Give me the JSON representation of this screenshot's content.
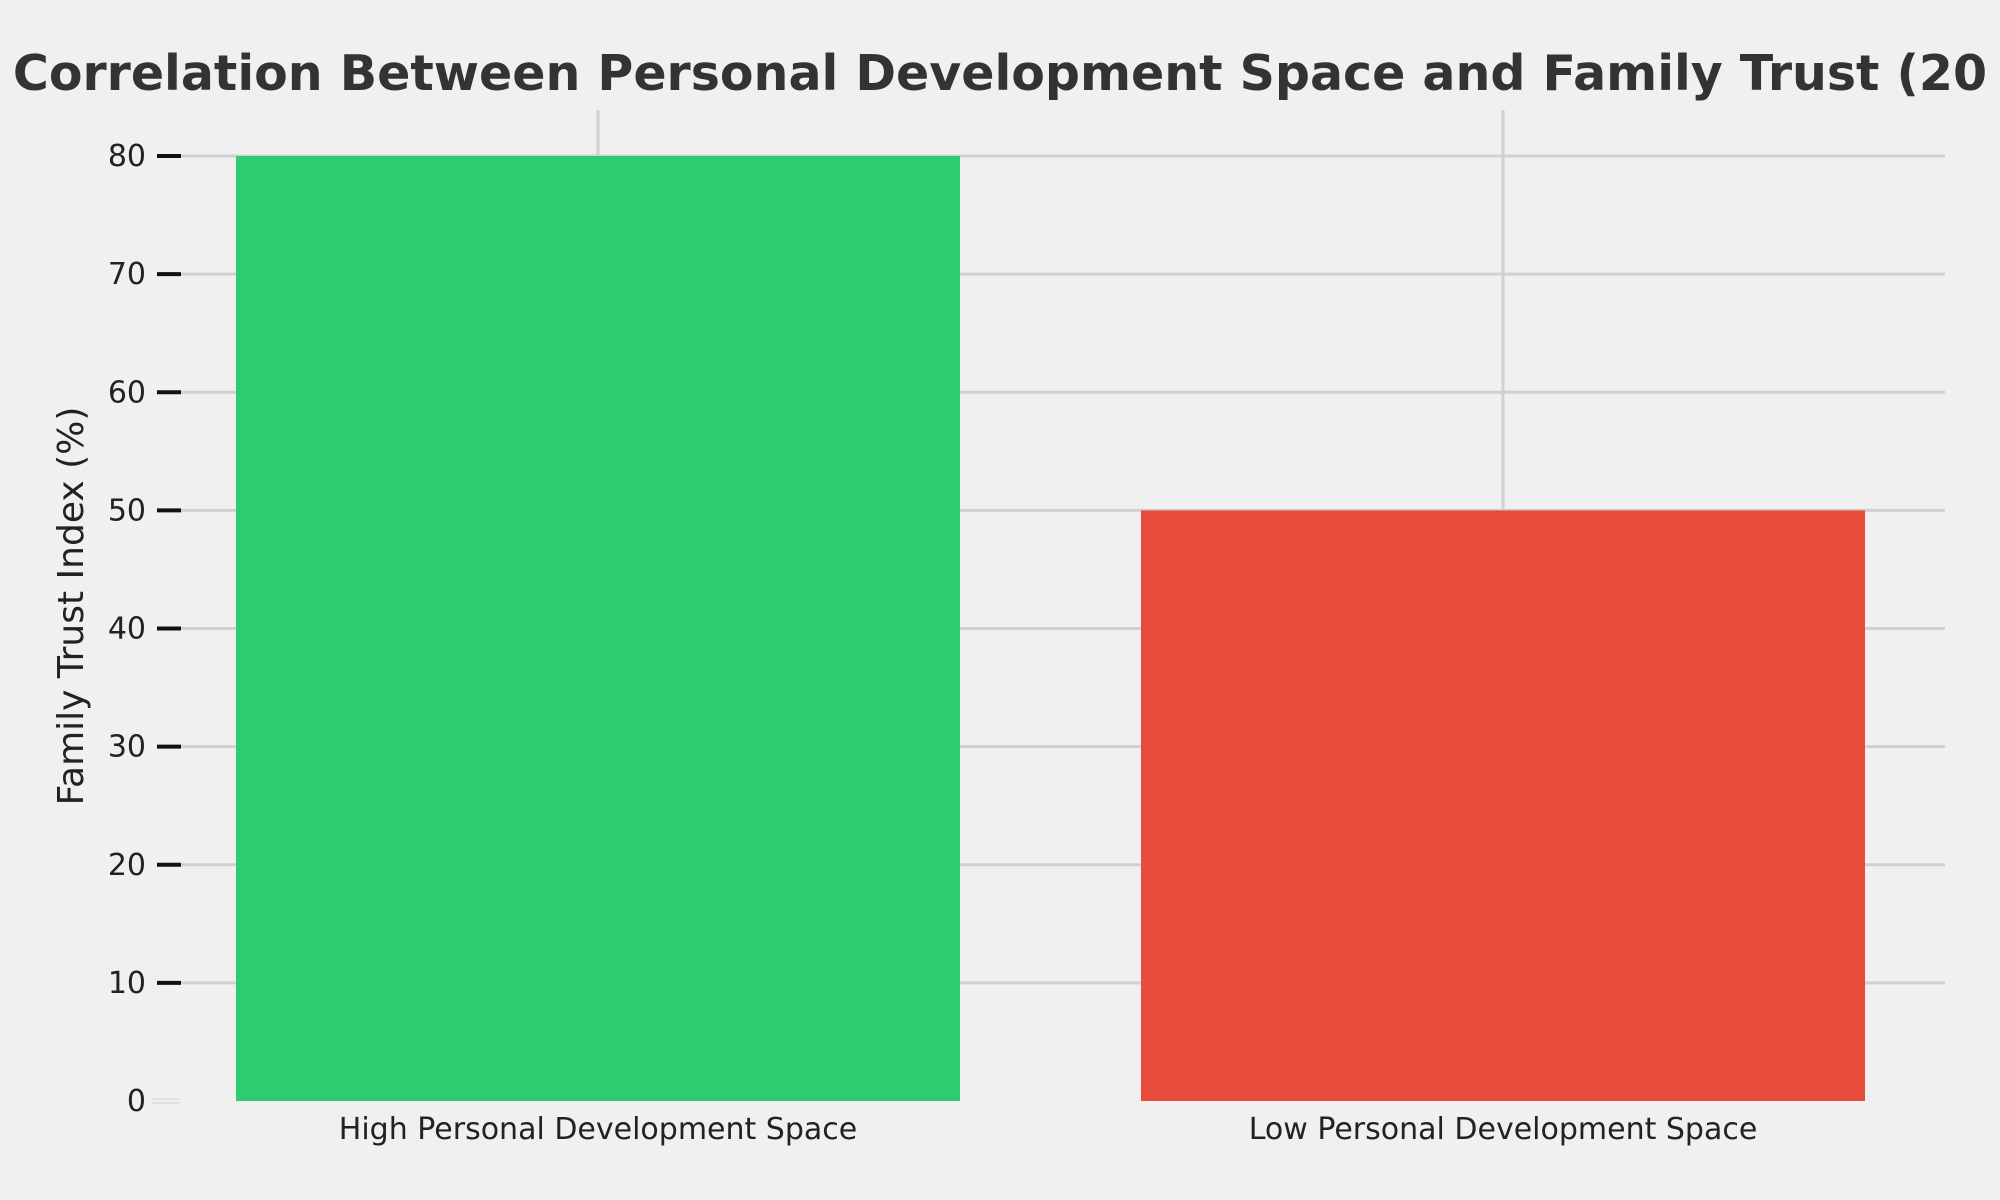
{
  "chart_data": {
    "type": "bar",
    "title": "Correlation Between Personal Development Space and Family Trust (20",
    "xlabel": "",
    "ylabel": "Family Trust Index (%)",
    "categories": [
      "High Personal Development Space",
      "Low Personal Development Space"
    ],
    "values": [
      80,
      50
    ],
    "bar_colors": [
      "#2ecc71",
      "#e74c3c"
    ],
    "ylim": [
      0,
      80
    ],
    "yticks": [
      0,
      10,
      20,
      30,
      40,
      50,
      60,
      70,
      80
    ],
    "grid": true,
    "legend": "none"
  }
}
